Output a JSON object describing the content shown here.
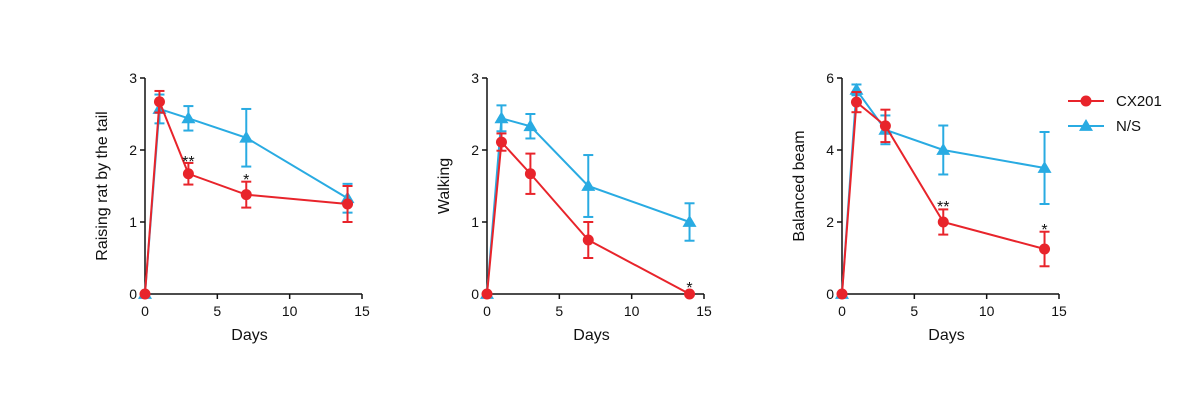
{
  "colors": {
    "cx201": "#e8242b",
    "ns": "#29abe2",
    "axis": "#111111"
  },
  "legend": [
    {
      "name": "CX201",
      "marker": "circle",
      "color": "#e8242b"
    },
    {
      "name": "N/S",
      "marker": "triangle",
      "color": "#29abe2"
    }
  ],
  "chart_data": [
    {
      "type": "line",
      "xlabel": "Days",
      "ylabel": "Raising rat by the tail",
      "xlim": [
        0,
        15
      ],
      "ylim": [
        0,
        3
      ],
      "xticks": [
        0,
        5,
        10,
        15
      ],
      "yticks": [
        0,
        1,
        2,
        3
      ],
      "x": [
        0,
        1,
        3,
        7,
        14
      ],
      "series": [
        {
          "name": "CX201",
          "values": [
            0,
            2.67,
            1.67,
            1.38,
            1.25
          ],
          "errors": [
            0,
            0.15,
            0.15,
            0.18,
            0.25
          ]
        },
        {
          "name": "N/S",
          "values": [
            0,
            2.57,
            2.44,
            2.17,
            1.33
          ],
          "errors": [
            0,
            0.2,
            0.17,
            0.4,
            0.2
          ]
        }
      ],
      "annotations": [
        {
          "text": "**",
          "x": 3,
          "y": 1.85
        },
        {
          "text": "*",
          "x": 7,
          "y": 1.6
        }
      ]
    },
    {
      "type": "line",
      "xlabel": "Days",
      "ylabel": "Walking",
      "xlim": [
        0,
        15
      ],
      "ylim": [
        0,
        3
      ],
      "xticks": [
        0,
        5,
        10,
        15
      ],
      "yticks": [
        0,
        1,
        2,
        3
      ],
      "x": [
        0,
        1,
        3,
        7,
        14
      ],
      "series": [
        {
          "name": "CX201",
          "values": [
            0,
            2.11,
            1.67,
            0.75,
            0
          ],
          "errors": [
            0,
            0.12,
            0.28,
            0.25,
            0
          ]
        },
        {
          "name": "N/S",
          "values": [
            0,
            2.44,
            2.33,
            1.5,
            1.0
          ],
          "errors": [
            0,
            0.18,
            0.17,
            0.43,
            0.26
          ]
        }
      ],
      "annotations": [
        {
          "text": "*",
          "x": 14,
          "y": 0.1
        }
      ]
    },
    {
      "type": "line",
      "xlabel": "Days",
      "ylabel": "Balanced beam",
      "xlim": [
        0,
        15
      ],
      "ylim": [
        0,
        6
      ],
      "xticks": [
        0,
        5,
        10,
        15
      ],
      "yticks": [
        0,
        2,
        4,
        6
      ],
      "x": [
        0,
        1,
        3,
        7,
        14
      ],
      "series": [
        {
          "name": "CX201",
          "values": [
            0,
            5.33,
            4.67,
            2.0,
            1.25
          ],
          "errors": [
            0,
            0.28,
            0.45,
            0.35,
            0.48
          ]
        },
        {
          "name": "N/S",
          "values": [
            0,
            5.67,
            4.56,
            4.0,
            3.5
          ],
          "errors": [
            0,
            0.15,
            0.4,
            0.68,
            1.0
          ]
        }
      ],
      "annotations": [
        {
          "text": "**",
          "x": 7,
          "y": 2.45
        },
        {
          "text": "*",
          "x": 14,
          "y": 1.8
        }
      ]
    }
  ]
}
